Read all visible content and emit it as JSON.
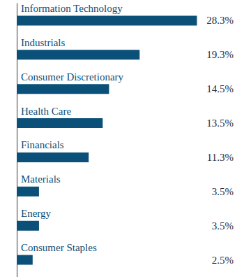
{
  "chart_data": {
    "type": "bar",
    "orientation": "horizontal",
    "categories": [
      "Information Technology",
      "Industrials",
      "Consumer Discretionary",
      "Health Care",
      "Financials",
      "Materials",
      "Energy",
      "Consumer Staples"
    ],
    "values": [
      28.3,
      19.3,
      14.5,
      13.5,
      11.3,
      3.5,
      3.5,
      2.5
    ],
    "value_labels": [
      "28.3%",
      "19.3%",
      "14.5%",
      "13.5%",
      "11.3%",
      "3.5%",
      "3.5%",
      "2.5%"
    ],
    "color": "#0b5079",
    "xlim": [
      0,
      30
    ],
    "data_labels": true,
    "tick_labels": false,
    "grid": false
  }
}
